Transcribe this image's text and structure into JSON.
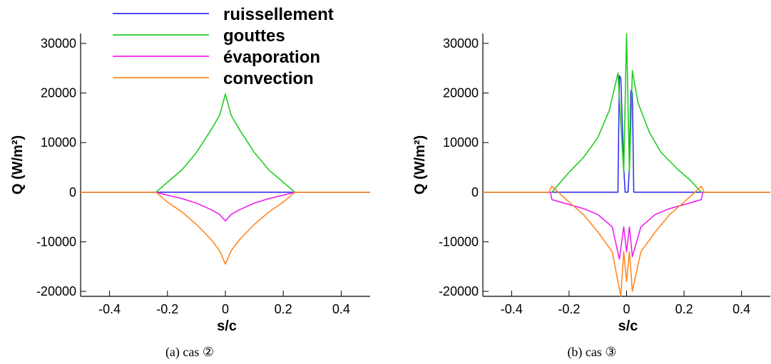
{
  "chart_data": [
    {
      "type": "line",
      "caption": "(a) cas ②",
      "xlabel": "s/c",
      "ylabel": "Q (W/m²)",
      "xlim": [
        -0.5,
        0.5
      ],
      "ylim": [
        -21000,
        32000
      ],
      "xticks": [
        -0.4,
        -0.2,
        0,
        0.2,
        0.4
      ],
      "yticks": [
        -20000,
        -10000,
        0,
        10000,
        20000,
        30000
      ],
      "grid": false,
      "legend": "top-left",
      "series": [
        {
          "name": "ruissellement",
          "color": "#3333ee",
          "x": [
            -0.5,
            -0.24,
            0,
            0.24,
            0.5
          ],
          "y": [
            0,
            0,
            0,
            0,
            0
          ]
        },
        {
          "name": "gouttes",
          "color": "#22cc22",
          "x": [
            -0.5,
            -0.24,
            -0.2,
            -0.15,
            -0.1,
            -0.05,
            -0.02,
            0,
            0.02,
            0.05,
            0.1,
            0.15,
            0.2,
            0.24,
            0.5
          ],
          "y": [
            0,
            0,
            2000,
            4500,
            8000,
            12500,
            15500,
            19800,
            15500,
            12500,
            8000,
            4500,
            2000,
            0,
            0
          ]
        },
        {
          "name": "évaporation",
          "color": "#ee22ee",
          "x": [
            -0.5,
            -0.24,
            -0.2,
            -0.15,
            -0.1,
            -0.05,
            -0.02,
            0,
            0.02,
            0.05,
            0.1,
            0.15,
            0.2,
            0.24,
            0.5
          ],
          "y": [
            0,
            0,
            -600,
            -1300,
            -2200,
            -3500,
            -4500,
            -5800,
            -4500,
            -3500,
            -2200,
            -1300,
            -600,
            0,
            0
          ]
        },
        {
          "name": "convection",
          "color": "#ff8822",
          "x": [
            -0.5,
            -0.24,
            -0.2,
            -0.15,
            -0.1,
            -0.05,
            -0.02,
            0,
            0.02,
            0.05,
            0.1,
            0.15,
            0.2,
            0.24,
            0.5
          ],
          "y": [
            0,
            0,
            -2000,
            -4000,
            -6500,
            -9500,
            -11800,
            -14500,
            -11800,
            -9500,
            -6500,
            -4000,
            -2000,
            0,
            0
          ]
        }
      ]
    },
    {
      "type": "line",
      "caption": "(b) cas ③",
      "xlabel": "s/c",
      "ylabel": "Q (W/m²)",
      "xlim": [
        -0.5,
        0.5
      ],
      "ylim": [
        -21000,
        32000
      ],
      "xticks": [
        -0.4,
        -0.2,
        0,
        0.2,
        0.4
      ],
      "yticks": [
        -20000,
        -10000,
        0,
        10000,
        20000,
        30000
      ],
      "grid": false,
      "series": [
        {
          "name": "ruissellement",
          "color": "#3333ee",
          "x": [
            -0.5,
            -0.03,
            -0.025,
            -0.02,
            -0.01,
            -0.005,
            0.005,
            0.01,
            0.015,
            0.02,
            0.025,
            0.5
          ],
          "y": [
            0,
            0,
            23500,
            23000,
            5000,
            0,
            0,
            5000,
            20500,
            20000,
            0,
            0
          ]
        },
        {
          "name": "gouttes",
          "color": "#22cc22",
          "x": [
            -0.5,
            -0.26,
            -0.2,
            -0.15,
            -0.1,
            -0.06,
            -0.03,
            -0.01,
            0,
            0.01,
            0.02,
            0.04,
            0.08,
            0.12,
            0.18,
            0.22,
            0.26,
            0.5
          ],
          "y": [
            0,
            0,
            4000,
            7000,
            11000,
            16500,
            24000,
            4000,
            32000,
            4000,
            24500,
            18000,
            12000,
            8000,
            4500,
            2500,
            0,
            0
          ]
        },
        {
          "name": "évaporation",
          "color": "#ee22ee",
          "x": [
            -0.5,
            -0.265,
            -0.26,
            -0.2,
            -0.15,
            -0.1,
            -0.05,
            -0.025,
            -0.01,
            0,
            0.01,
            0.02,
            0.05,
            0.1,
            0.15,
            0.2,
            0.26,
            0.265,
            0.5
          ],
          "y": [
            0,
            0,
            -1500,
            -2500,
            -3300,
            -4500,
            -7000,
            -13500,
            -7000,
            -12000,
            -7000,
            -13000,
            -7000,
            -4500,
            -3300,
            -2500,
            -1500,
            0,
            0
          ]
        },
        {
          "name": "convection",
          "color": "#ff8822",
          "x": [
            -0.5,
            -0.27,
            -0.26,
            -0.2,
            -0.15,
            -0.1,
            -0.05,
            -0.02,
            -0.01,
            0,
            0.01,
            0.02,
            0.05,
            0.1,
            0.15,
            0.2,
            0.26,
            0.27,
            0.5
          ],
          "y": [
            0,
            0,
            1200,
            -2000,
            -4500,
            -8000,
            -12000,
            -21000,
            -12000,
            -18000,
            -12000,
            -20000,
            -12000,
            -8000,
            -4500,
            -2000,
            1200,
            0,
            0
          ]
        }
      ]
    }
  ]
}
